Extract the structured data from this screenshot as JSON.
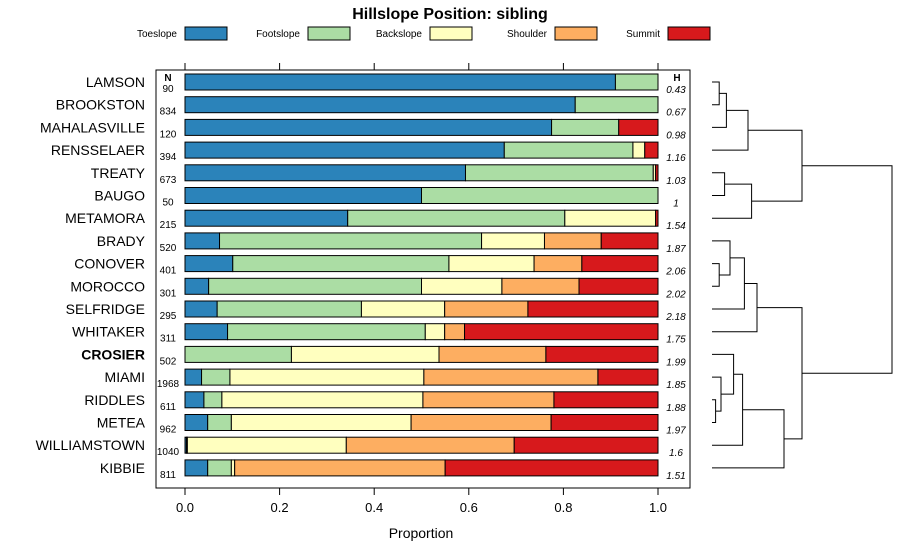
{
  "chart_data": {
    "type": "bar",
    "orientation": "horizontal",
    "stacked": true,
    "title": "Hillslope Position: sibling",
    "xlabel": "Proportion",
    "xlim": [
      0,
      1
    ],
    "xticks": [
      "0.0",
      "0.2",
      "0.4",
      "0.6",
      "0.8",
      "1.0"
    ],
    "n_header": "N",
    "h_header": "H",
    "legend": [
      {
        "name": "Toeslope",
        "color": "#2B83BA"
      },
      {
        "name": "Footslope",
        "color": "#ABDDA4"
      },
      {
        "name": "Backslope",
        "color": "#FFFFBF"
      },
      {
        "name": "Shoulder",
        "color": "#FDAE61"
      },
      {
        "name": "Summit",
        "color": "#D7191C"
      }
    ],
    "rows": [
      {
        "label": "LAMSON",
        "n": "90",
        "h": "0.43",
        "bold": false,
        "values": [
          0.91,
          0.09,
          0,
          0,
          0
        ]
      },
      {
        "label": "BROOKSTON",
        "n": "834",
        "h": "0.67",
        "bold": false,
        "values": [
          0.825,
          0.175,
          0,
          0,
          0
        ]
      },
      {
        "label": "MAHALASVILLE",
        "n": "120",
        "h": "0.98",
        "bold": false,
        "values": [
          0.775,
          0.142,
          0,
          0,
          0.083
        ]
      },
      {
        "label": "RENSSELAER",
        "n": "394",
        "h": "1.16",
        "bold": false,
        "values": [
          0.675,
          0.272,
          0.025,
          0,
          0.028
        ]
      },
      {
        "label": "TREATY",
        "n": "673",
        "h": "1.03",
        "bold": false,
        "values": [
          0.593,
          0.397,
          0.005,
          0,
          0.005
        ]
      },
      {
        "label": "BAUGO",
        "n": "50",
        "h": "1",
        "bold": false,
        "values": [
          0.5,
          0.5,
          0,
          0,
          0
        ]
      },
      {
        "label": "METAMORA",
        "n": "215",
        "h": "1.54",
        "bold": false,
        "values": [
          0.344,
          0.459,
          0.192,
          0,
          0.005
        ]
      },
      {
        "label": "BRADY",
        "n": "520",
        "h": "1.87",
        "bold": false,
        "values": [
          0.073,
          0.554,
          0.133,
          0.12,
          0.12
        ]
      },
      {
        "label": "CONOVER",
        "n": "401",
        "h": "2.06",
        "bold": false,
        "values": [
          0.101,
          0.457,
          0.18,
          0.101,
          0.161
        ]
      },
      {
        "label": "MOROCCO",
        "n": "301",
        "h": "2.02",
        "bold": false,
        "values": [
          0.05,
          0.45,
          0.17,
          0.163,
          0.167
        ]
      },
      {
        "label": "SELFRIDGE",
        "n": "295",
        "h": "2.18",
        "bold": false,
        "values": [
          0.068,
          0.305,
          0.176,
          0.176,
          0.275
        ]
      },
      {
        "label": "WHITAKER",
        "n": "311",
        "h": "1.75",
        "bold": false,
        "values": [
          0.09,
          0.418,
          0.041,
          0.042,
          0.409
        ]
      },
      {
        "label": "CROSIER",
        "n": "502",
        "h": "1.99",
        "bold": true,
        "values": [
          0,
          0.225,
          0.312,
          0.226,
          0.237
        ]
      },
      {
        "label": "MIAMI",
        "n": "1968",
        "h": "1.85",
        "bold": false,
        "values": [
          0.035,
          0.06,
          0.41,
          0.368,
          0.127
        ]
      },
      {
        "label": "RIDDLES",
        "n": "611",
        "h": "1.88",
        "bold": false,
        "values": [
          0.04,
          0.038,
          0.425,
          0.277,
          0.22
        ]
      },
      {
        "label": "METEA",
        "n": "962",
        "h": "1.97",
        "bold": false,
        "values": [
          0.048,
          0.05,
          0.38,
          0.296,
          0.226
        ]
      },
      {
        "label": "WILLIAMSTOWN",
        "n": "1040",
        "h": "1.6",
        "bold": false,
        "values": [
          0.003,
          0.002,
          0.336,
          0.355,
          0.304
        ]
      },
      {
        "label": "KIBBIE",
        "n": "811",
        "h": "1.51",
        "bold": false,
        "values": [
          0.048,
          0.05,
          0.007,
          0.445,
          0.45
        ]
      }
    ],
    "dendrogram": {
      "description": "hierarchical clustering of rows (top to bottom order)",
      "merges": [
        {
          "a": "LAMSON",
          "b": "BROOKSTON",
          "height": 0.04
        },
        {
          "a": "m0",
          "b": "MAHALASVILLE",
          "height": 0.08
        },
        {
          "a": "m1",
          "b": "RENSSELAER",
          "height": 0.2
        },
        {
          "a": "TREATY",
          "b": "BAUGO",
          "height": 0.07
        },
        {
          "a": "m3",
          "b": "METAMORA",
          "height": 0.22
        },
        {
          "a": "m2",
          "b": "m4",
          "height": 0.5
        },
        {
          "a": "CONOVER",
          "b": "MOROCCO",
          "height": 0.04
        },
        {
          "a": "BRADY",
          "b": "m6",
          "height": 0.1
        },
        {
          "a": "m7",
          "b": "SELFRIDGE",
          "height": 0.18
        },
        {
          "a": "m8",
          "b": "WHITAKER",
          "height": 0.25
        },
        {
          "a": "RIDDLES",
          "b": "METEA",
          "height": 0.02
        },
        {
          "a": "MIAMI",
          "b": "m10",
          "height": 0.05
        },
        {
          "a": "CROSIER",
          "b": "m11",
          "height": 0.12
        },
        {
          "a": "m12",
          "b": "WILLIAMSTOWN",
          "height": 0.17
        },
        {
          "a": "m13",
          "b": "KIBBIE",
          "height": 0.4
        },
        {
          "a": "m9",
          "b": "m14",
          "height": 0.5
        },
        {
          "a": "m5",
          "b": "m15",
          "height": 1.0
        }
      ]
    }
  }
}
